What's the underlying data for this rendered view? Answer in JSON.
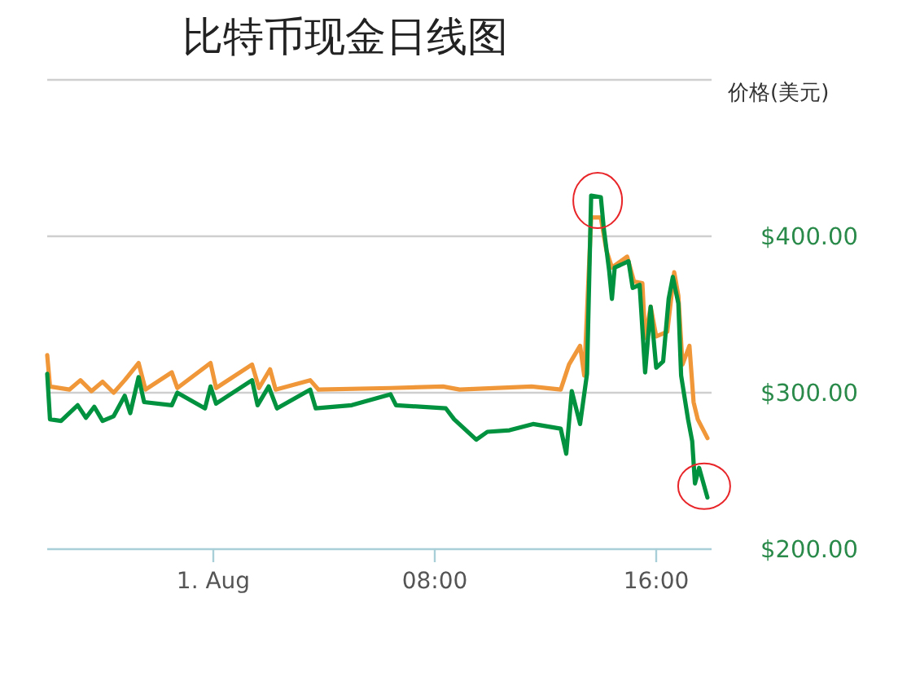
{
  "chart_data": {
    "type": "line",
    "title": "比特币现金日线图",
    "ylabel": "价格(美元)",
    "grid": "y",
    "xlim": [
      -6,
      18
    ],
    "xticks": [
      {
        "value": 0,
        "label": "1. Aug"
      },
      {
        "value": 8,
        "label": "08:00"
      },
      {
        "value": 16,
        "label": "16:00"
      }
    ],
    "ylim": [
      200,
      500
    ],
    "yticks": [
      {
        "value": 200,
        "label": "$200.00"
      },
      {
        "value": 300,
        "label": "$300.00"
      },
      {
        "value": 400,
        "label": "$400.00"
      },
      {
        "value": 500,
        "label": null
      }
    ],
    "series": [
      {
        "color": "#f0973a",
        "x": [
          -6,
          -5.9,
          -5.2,
          -4.8,
          -4.4,
          -4,
          -3.6,
          -3.2,
          -2.7,
          -2.45,
          -1.5,
          -1.3,
          -0.1,
          0.1,
          1.4,
          1.65,
          2.05,
          2.25,
          3.5,
          3.8,
          6.4,
          8.3,
          8.9,
          11.5,
          12.55,
          12.85,
          13.25,
          13.4,
          13.65,
          14,
          14.2,
          14.4,
          14.95,
          15.2,
          15.5,
          15.6,
          15.8,
          16,
          16.4,
          16.65,
          16.8,
          16.95,
          17.2,
          17.35,
          17.5,
          17.85
        ],
        "values": [
          324,
          304,
          302,
          308,
          301,
          307,
          300,
          308,
          319,
          302,
          313,
          303,
          319,
          303,
          318,
          303,
          315,
          302,
          308,
          302,
          303,
          304,
          302,
          304,
          302,
          318,
          330,
          311,
          412,
          412,
          391,
          380,
          387,
          371,
          370,
          335,
          355,
          336,
          339,
          377,
          362,
          318,
          330,
          294,
          283,
          271
        ]
      },
      {
        "color": "#00923f",
        "x": [
          -6,
          -5.9,
          -5.5,
          -4.9,
          -4.6,
          -4.3,
          -4,
          -3.6,
          -3.2,
          -3,
          -2.7,
          -2.5,
          -1.5,
          -1.3,
          -0.3,
          -0.1,
          0.1,
          1.4,
          1.6,
          2,
          2.3,
          3.5,
          3.7,
          5,
          6.4,
          6.6,
          8.4,
          8.7,
          9.5,
          9.9,
          10.7,
          11.55,
          12.55,
          12.75,
          12.95,
          13.25,
          13.5,
          13.65,
          14,
          14.1,
          14.3,
          14.4,
          14.5,
          15,
          15.15,
          15.4,
          15.6,
          15.8,
          16,
          16.25,
          16.45,
          16.6,
          16.8,
          16.9,
          17.15,
          17.3,
          17.4,
          17.55,
          17.85
        ],
        "values": [
          312,
          283,
          282,
          292,
          284,
          291,
          282,
          285,
          298,
          287,
          310,
          294,
          292,
          300,
          290,
          304,
          293,
          308,
          292,
          304,
          290,
          302,
          290,
          292,
          299,
          292,
          290,
          283,
          270,
          275,
          276,
          280,
          277,
          261,
          301,
          280,
          312,
          426,
          425,
          406,
          378,
          360,
          380,
          384,
          367,
          369,
          313,
          355,
          316,
          320,
          360,
          374,
          357,
          311,
          283,
          269,
          242,
          252,
          233
        ]
      }
    ]
  }
}
